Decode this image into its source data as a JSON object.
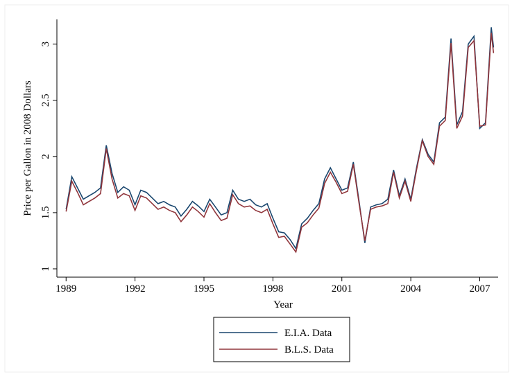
{
  "chart_data": {
    "type": "line",
    "x_label": "Year",
    "y_label": "Price per Gallon in 2008 Dollars",
    "x": [
      1989,
      1989.25,
      1989.5,
      1989.75,
      1990,
      1990.25,
      1990.5,
      1990.75,
      1991,
      1991.25,
      1991.5,
      1991.75,
      1992,
      1992.25,
      1992.5,
      1992.75,
      1993,
      1993.25,
      1993.5,
      1993.75,
      1994,
      1994.25,
      1994.5,
      1994.75,
      1995,
      1995.25,
      1995.5,
      1995.75,
      1996,
      1996.25,
      1996.5,
      1996.75,
      1997,
      1997.25,
      1997.5,
      1997.75,
      1998,
      1998.25,
      1998.5,
      1998.75,
      1999,
      1999.25,
      1999.5,
      1999.75,
      2000,
      2000.25,
      2000.5,
      2000.75,
      2001,
      2001.25,
      2001.5,
      2001.75,
      2002,
      2002.25,
      2002.5,
      2002.75,
      2003,
      2003.25,
      2003.5,
      2003.75,
      2004,
      2004.25,
      2004.5,
      2004.75,
      2005,
      2005.25,
      2005.5,
      2005.75,
      2006,
      2006.25,
      2006.5,
      2006.75,
      2007,
      2007.25,
      2007.5,
      2007.6
    ],
    "series": [
      {
        "name": "E.I.A. Data",
        "color": "#1a476f",
        "values": [
          1.53,
          1.82,
          1.72,
          1.62,
          1.65,
          1.68,
          1.72,
          2.1,
          1.85,
          1.68,
          1.73,
          1.7,
          1.57,
          1.7,
          1.68,
          1.63,
          1.58,
          1.6,
          1.57,
          1.55,
          1.47,
          1.53,
          1.6,
          1.56,
          1.51,
          1.62,
          1.55,
          1.48,
          1.5,
          1.7,
          1.62,
          1.6,
          1.62,
          1.57,
          1.55,
          1.58,
          1.45,
          1.33,
          1.32,
          1.26,
          1.18,
          1.4,
          1.45,
          1.52,
          1.58,
          1.8,
          1.9,
          1.8,
          1.7,
          1.72,
          1.95,
          1.6,
          1.23,
          1.55,
          1.57,
          1.58,
          1.62,
          1.88,
          1.65,
          1.8,
          1.62,
          1.9,
          2.15,
          2.02,
          1.95,
          2.3,
          2.35,
          3.05,
          2.28,
          2.4,
          3,
          3.07,
          2.25,
          2.3,
          3.15,
          2.97
        ]
      },
      {
        "name": "B.L.S. Data",
        "color": "#90353b",
        "values": [
          1.51,
          1.78,
          1.68,
          1.57,
          1.6,
          1.63,
          1.67,
          2.07,
          1.8,
          1.63,
          1.67,
          1.65,
          1.52,
          1.65,
          1.63,
          1.58,
          1.53,
          1.55,
          1.52,
          1.5,
          1.42,
          1.48,
          1.55,
          1.51,
          1.46,
          1.58,
          1.5,
          1.43,
          1.45,
          1.66,
          1.58,
          1.55,
          1.56,
          1.52,
          1.5,
          1.53,
          1.4,
          1.28,
          1.29,
          1.22,
          1.15,
          1.37,
          1.41,
          1.48,
          1.54,
          1.76,
          1.86,
          1.77,
          1.67,
          1.69,
          1.93,
          1.58,
          1.25,
          1.53,
          1.55,
          1.56,
          1.58,
          1.86,
          1.63,
          1.78,
          1.6,
          1.88,
          2.14,
          2.0,
          1.93,
          2.27,
          2.32,
          3.01,
          2.25,
          2.36,
          2.97,
          3.03,
          2.27,
          2.28,
          3.1,
          2.92
        ]
      }
    ],
    "xlim": [
      1988.6,
      2007.8
    ],
    "xticks": [
      1989,
      1992,
      1995,
      1998,
      2001,
      2004,
      2007
    ],
    "ylim": [
      0.926,
      3.22
    ],
    "yticks": [
      1,
      1.5,
      2,
      2.5,
      3
    ]
  }
}
